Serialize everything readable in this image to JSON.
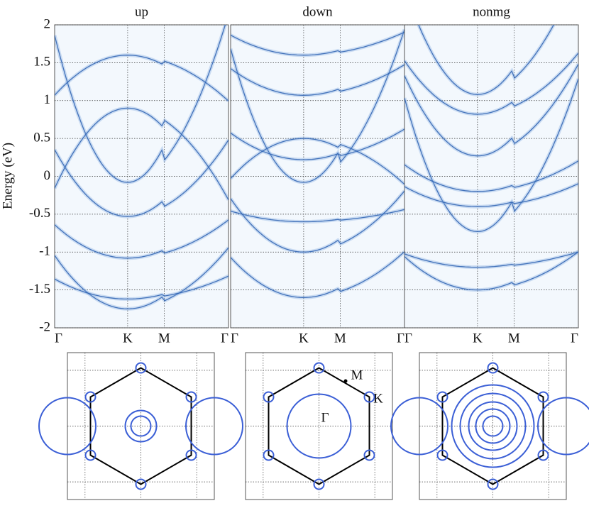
{
  "band_panels": [
    {
      "title": "up"
    },
    {
      "title": "down"
    },
    {
      "title": "nonmg"
    }
  ],
  "y_axis": {
    "label": "Energy (eV)",
    "ylim": [
      -2,
      2
    ],
    "yticks": [
      -2,
      -1.5,
      -1,
      -0.5,
      0,
      0.5,
      1,
      1.5,
      2
    ]
  },
  "k_path": {
    "labels": [
      "Γ",
      "K",
      "M",
      "Γ"
    ]
  },
  "fermi_surface": {
    "labels": [
      "M",
      "K",
      "Γ"
    ]
  }
}
